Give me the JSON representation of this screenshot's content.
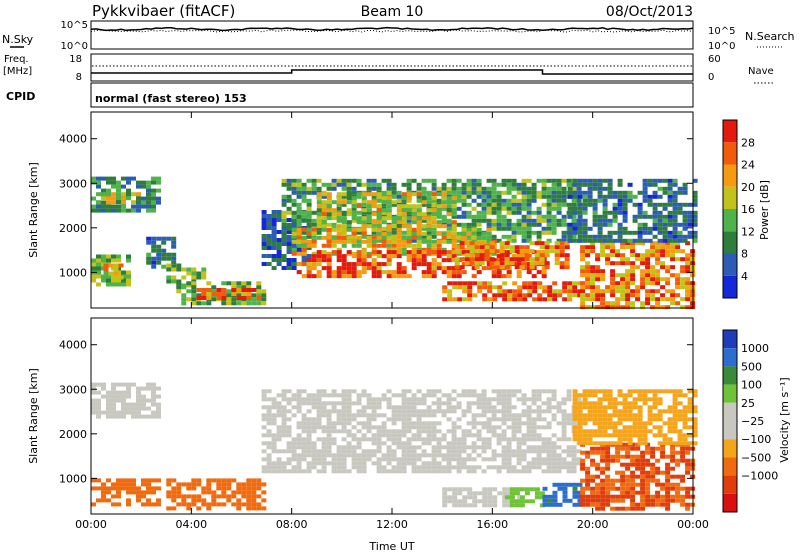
{
  "header": {
    "station": "Pykkvibaer (fitACF)",
    "beam": "Beam 10",
    "date": "08/Oct/2013"
  },
  "noise_panel": {
    "left_label": "N.Sky",
    "right_label": "N.Search",
    "left_ticks": [
      "10^5",
      "10^0"
    ],
    "right_ticks": [
      "10^5",
      "10^0"
    ]
  },
  "freq_panel": {
    "left_label_1": "Freq.",
    "left_label_2": "[MHz]",
    "right_label": "Nave",
    "left_ticks": [
      "18",
      "8"
    ],
    "right_ticks": [
      "60",
      "0"
    ]
  },
  "cpid": {
    "label": "CPID",
    "value": "normal (fast stereo) 153"
  },
  "colors": {
    "power_scale": [
      "#1428d8",
      "#2c5cb4",
      "#2f7d3c",
      "#4db34a",
      "#c2c21d",
      "#f59b12",
      "#f25a0c",
      "#e21b0c"
    ],
    "velocity_scale": [
      "#1f3db8",
      "#2c6ed0",
      "#3b8a3a",
      "#6fc337",
      "#c8c8c0",
      "#c8c8c0",
      "#f4a51c",
      "#f06a10",
      "#e03c0c",
      "#d81010"
    ],
    "ground_scatter": "#c8c8c0"
  },
  "chart_data": [
    {
      "type": "heatmap",
      "panel": "power",
      "xlabel": "Time UT",
      "ylabel": "Slant Range [km]",
      "x_tick_labels": [
        "00:00",
        "04:00",
        "08:00",
        "12:00",
        "16:00",
        "20:00",
        "00:00"
      ],
      "x_range_hours": [
        0,
        24
      ],
      "y_ticks": [
        1000,
        2000,
        3000,
        4000
      ],
      "ylim": [
        200,
        4600
      ],
      "colorbar_label": "Power [dB]",
      "colorbar_ticks": [
        "4",
        "8",
        "12",
        "16",
        "20",
        "24",
        "28"
      ],
      "colorbar_range": [
        0,
        32
      ],
      "regions": [
        {
          "t0": 0.0,
          "t1": 2.6,
          "r0": 2350,
          "r1": 3150,
          "value": 10
        },
        {
          "t0": 0.2,
          "t1": 1.8,
          "r0": 2600,
          "r1": 2800,
          "value": 18
        },
        {
          "t0": 2.2,
          "t1": 3.2,
          "r0": 1100,
          "r1": 1800,
          "value": 8
        },
        {
          "t0": 0.0,
          "t1": 1.4,
          "r0": 700,
          "r1": 1400,
          "value": 14
        },
        {
          "t0": 0.5,
          "t1": 1.2,
          "r0": 900,
          "r1": 1200,
          "value": 22
        },
        {
          "t0": 3.0,
          "t1": 4.4,
          "r0": 700,
          "r1": 1200,
          "value": 14
        },
        {
          "t0": 3.4,
          "t1": 6.8,
          "r0": 300,
          "r1": 800,
          "value": 14
        },
        {
          "t0": 4.2,
          "t1": 6.6,
          "r0": 450,
          "r1": 650,
          "value": 26
        },
        {
          "t0": 6.8,
          "t1": 8.6,
          "r0": 1100,
          "r1": 2400,
          "value": 6
        },
        {
          "t0": 7.6,
          "t1": 19.5,
          "r0": 1700,
          "r1": 3100,
          "value": 12
        },
        {
          "t0": 9.0,
          "t1": 14.5,
          "r0": 2000,
          "r1": 2800,
          "value": 18
        },
        {
          "t0": 8.0,
          "t1": 16.0,
          "r0": 1400,
          "r1": 2000,
          "value": 20
        },
        {
          "t0": 8.2,
          "t1": 18.0,
          "r0": 900,
          "r1": 1500,
          "value": 28
        },
        {
          "t0": 14.5,
          "t1": 19.0,
          "r0": 1100,
          "r1": 1700,
          "value": 24
        },
        {
          "t0": 14.0,
          "t1": 19.5,
          "r0": 400,
          "r1": 800,
          "value": 26
        },
        {
          "t0": 19.5,
          "t1": 24.0,
          "r0": 200,
          "r1": 1700,
          "value": 24
        },
        {
          "t0": 19.0,
          "t1": 24.0,
          "r0": 1700,
          "r1": 3100,
          "value": 8
        }
      ]
    },
    {
      "type": "heatmap",
      "panel": "velocity",
      "xlabel": "Time UT",
      "ylabel": "Slant Range [km]",
      "x_tick_labels": [
        "00:00",
        "04:00",
        "08:00",
        "12:00",
        "16:00",
        "20:00",
        "00:00"
      ],
      "x_range_hours": [
        0,
        24
      ],
      "y_ticks": [
        1000,
        2000,
        3000,
        4000
      ],
      "ylim": [
        200,
        4600
      ],
      "colorbar_label": "Velocity [m s⁻¹]",
      "colorbar_ticks": [
        "1000",
        "500",
        "100",
        "25",
        "−25",
        "−100",
        "−500",
        "−1000"
      ],
      "regions": [
        {
          "t0": 0.0,
          "t1": 2.6,
          "r0": 2400,
          "r1": 3150,
          "value": 0
        },
        {
          "t0": 0.0,
          "t1": 2.6,
          "r0": 450,
          "r1": 1000,
          "value": -300
        },
        {
          "t0": 3.0,
          "t1": 6.8,
          "r0": 300,
          "r1": 1000,
          "value": -150
        },
        {
          "t0": 6.8,
          "t1": 19.5,
          "r0": 1200,
          "r1": 3000,
          "value": 0
        },
        {
          "t0": 14.0,
          "t1": 17.0,
          "r0": 400,
          "r1": 800,
          "value": 0
        },
        {
          "t0": 16.5,
          "t1": 18.0,
          "r0": 400,
          "r1": 800,
          "value": 80
        },
        {
          "t0": 18.0,
          "t1": 19.5,
          "r0": 400,
          "r1": 900,
          "value": 600
        },
        {
          "t0": 19.5,
          "t1": 24.0,
          "r0": 300,
          "r1": 1800,
          "value": -500
        },
        {
          "t0": 19.2,
          "t1": 24.0,
          "r0": 1800,
          "r1": 3000,
          "value": -60
        }
      ]
    }
  ]
}
